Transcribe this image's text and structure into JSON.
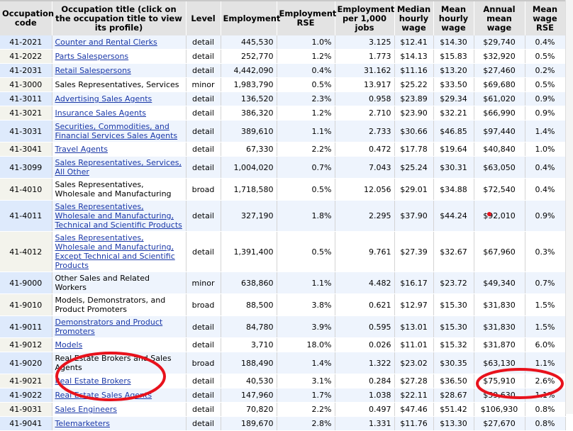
{
  "headers": [
    "Occupation code",
    "Occupation title (click on the occupation title to view its profile)",
    "Level",
    "Employment",
    "Employment RSE",
    "Employment per 1,000 jobs",
    "Median hourly wage",
    "Mean hourly wage",
    "Annual mean wage",
    "Mean wage RSE"
  ],
  "rows": [
    [
      "41-2021",
      "Counter and Rental Clerks",
      "detail",
      "445,530",
      "1.0%",
      "3.125",
      "$12.41",
      "$14.30",
      "$29,740",
      "0.4%",
      true
    ],
    [
      "41-2022",
      "Parts Salespersons",
      "detail",
      "252,770",
      "1.2%",
      "1.773",
      "$14.13",
      "$15.83",
      "$32,920",
      "0.5%",
      true
    ],
    [
      "41-2031",
      "Retail Salespersons",
      "detail",
      "4,442,090",
      "0.4%",
      "31.162",
      "$11.16",
      "$13.20",
      "$27,460",
      "0.2%",
      true
    ],
    [
      "41-3000",
      "Sales Representatives, Services",
      "minor",
      "1,983,790",
      "0.5%",
      "13.917",
      "$25.22",
      "$33.50",
      "$69,680",
      "0.5%",
      false
    ],
    [
      "41-3011",
      "Advertising Sales Agents",
      "detail",
      "136,520",
      "2.3%",
      "0.958",
      "$23.89",
      "$29.34",
      "$61,020",
      "0.9%",
      true
    ],
    [
      "41-3021",
      "Insurance Sales Agents",
      "detail",
      "386,320",
      "1.2%",
      "2.710",
      "$23.90",
      "$32.21",
      "$66,990",
      "0.9%",
      true
    ],
    [
      "41-3031",
      "Securities, Commodities, and Financial Services Sales Agents",
      "detail",
      "389,610",
      "1.1%",
      "2.733",
      "$30.66",
      "$46.85",
      "$97,440",
      "1.4%",
      true
    ],
    [
      "41-3041",
      "Travel Agents",
      "detail",
      "67,330",
      "2.2%",
      "0.472",
      "$17.78",
      "$19.64",
      "$40,840",
      "1.0%",
      true
    ],
    [
      "41-3099",
      "Sales Representatives, Services, All Other",
      "detail",
      "1,004,020",
      "0.7%",
      "7.043",
      "$25.24",
      "$30.31",
      "$63,050",
      "0.4%",
      true
    ],
    [
      "41-4010",
      "Sales Representatives, Wholesale and Manufacturing",
      "broad",
      "1,718,580",
      "0.5%",
      "12.056",
      "$29.01",
      "$34.88",
      "$72,540",
      "0.4%",
      false
    ],
    [
      "41-4011",
      "Sales Representatives, Wholesale and Manufacturing, Technical and Scientific Products",
      "detail",
      "327,190",
      "1.8%",
      "2.295",
      "$37.90",
      "$44.24",
      "$92,010",
      "0.9%",
      true
    ],
    [
      "41-4012",
      "Sales Representatives, Wholesale and Manufacturing, Except Technical and Scientific Products",
      "detail",
      "1,391,400",
      "0.5%",
      "9.761",
      "$27.39",
      "$32.67",
      "$67,960",
      "0.3%",
      true
    ],
    [
      "41-9000",
      "Other Sales and Related Workers",
      "minor",
      "638,860",
      "1.1%",
      "4.482",
      "$16.17",
      "$23.72",
      "$49,340",
      "0.7%",
      false
    ],
    [
      "41-9010",
      "Models, Demonstrators, and Product Promoters",
      "broad",
      "88,500",
      "3.8%",
      "0.621",
      "$12.97",
      "$15.30",
      "$31,830",
      "1.5%",
      false
    ],
    [
      "41-9011",
      "Demonstrators and Product Promoters",
      "detail",
      "84,780",
      "3.9%",
      "0.595",
      "$13.01",
      "$15.30",
      "$31,830",
      "1.5%",
      true
    ],
    [
      "41-9012",
      "Models",
      "detail",
      "3,710",
      "18.0%",
      "0.026",
      "$11.01",
      "$15.32",
      "$31,870",
      "6.0%",
      true
    ],
    [
      "41-9020",
      "Real Estate Brokers and Sales Agents",
      "broad",
      "188,490",
      "1.4%",
      "1.322",
      "$23.02",
      "$30.35",
      "$63,130",
      "1.1%",
      false
    ],
    [
      "41-9021",
      "Real Estate Brokers",
      "detail",
      "40,530",
      "3.1%",
      "0.284",
      "$27.28",
      "$36.50",
      "$75,910",
      "2.6%",
      true
    ],
    [
      "41-9022",
      "Real Estate Sales Agents",
      "detail",
      "147,960",
      "1.7%",
      "1.038",
      "$22.11",
      "$28.67",
      "$59,630",
      "1.1%",
      true
    ],
    [
      "41-9031",
      "Sales Engineers",
      "detail",
      "70,820",
      "2.2%",
      "0.497",
      "$47.46",
      "$51.42",
      "$106,930",
      "0.8%",
      true
    ],
    [
      "41-9041",
      "Telemarketers",
      "detail",
      "189,670",
      "2.8%",
      "1.331",
      "$11.76",
      "$13.30",
      "$27,670",
      "0.8%",
      true
    ]
  ],
  "annotation_color": "#e8121c"
}
